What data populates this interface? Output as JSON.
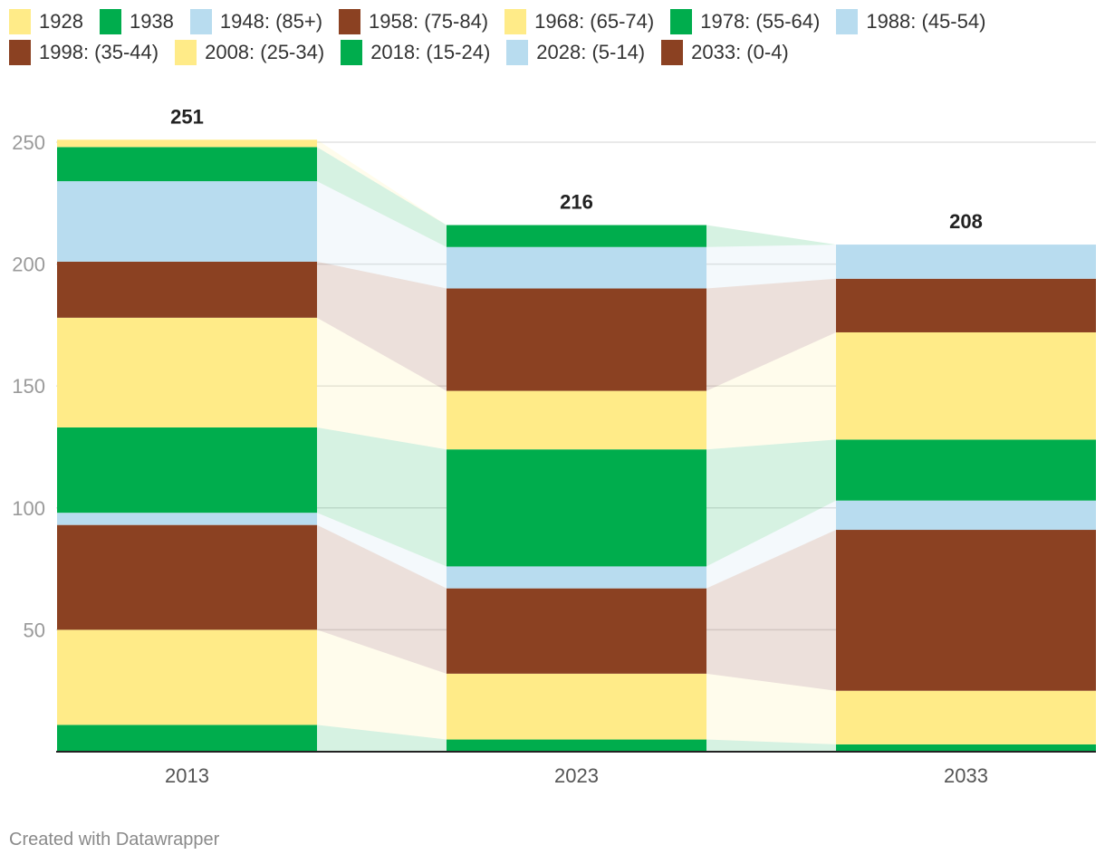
{
  "chart_data": {
    "type": "bar",
    "subtype": "stacked-bar-with-flows",
    "categories": [
      "2013",
      "2023",
      "2033"
    ],
    "totals": [
      251,
      216,
      208
    ],
    "ylim": [
      0,
      250
    ],
    "yticks": [
      50,
      100,
      150,
      200,
      250
    ],
    "grid": true,
    "legend_position": "top",
    "title": "",
    "xlabel": "",
    "ylabel": "",
    "series": [
      {
        "name": "2028: (5-14)",
        "color": "#b8dcef",
        "values": [
          0,
          0,
          0
        ]
      },
      {
        "name": "2018: (15-24)",
        "color": "#00ad4d",
        "values": [
          11,
          5,
          3
        ]
      },
      {
        "name": "2008: (25-34)",
        "color": "#ffeb88",
        "values": [
          39,
          27,
          22
        ]
      },
      {
        "name": "1998: (35-44)",
        "color": "#8b4122",
        "values": [
          43,
          35,
          66
        ]
      },
      {
        "name": "1988: (45-54)",
        "color": "#b8dcef",
        "values": [
          5,
          9,
          12
        ]
      },
      {
        "name": "1978: (55-64)",
        "color": "#00ad4d",
        "values": [
          35,
          48,
          25
        ]
      },
      {
        "name": "1968: (65-74)",
        "color": "#ffeb88",
        "values": [
          45,
          24,
          44
        ]
      },
      {
        "name": "1958: (75-84)",
        "color": "#8b4122",
        "values": [
          23,
          42,
          22
        ]
      },
      {
        "name": "1948: (85+)",
        "color": "#b8dcef",
        "values": [
          33,
          17,
          14
        ]
      },
      {
        "name": "1938",
        "color": "#00ad4d",
        "values": [
          14,
          9,
          0
        ]
      },
      {
        "name": "1928",
        "color": "#ffeb88",
        "values": [
          3,
          0,
          0
        ]
      }
    ]
  },
  "legend": [
    {
      "label": "1928",
      "color": "#ffeb88"
    },
    {
      "label": "1938",
      "color": "#00ad4d"
    },
    {
      "label": "1948: (85+)",
      "color": "#b8dcef"
    },
    {
      "label": "1958: (75-84)",
      "color": "#8b4122"
    },
    {
      "label": "1968: (65-74)",
      "color": "#ffeb88"
    },
    {
      "label": "1978: (55-64)",
      "color": "#00ad4d"
    },
    {
      "label": "1988: (45-54)",
      "color": "#b8dcef"
    },
    {
      "label": "1998: (35-44)",
      "color": "#8b4122"
    },
    {
      "label": "2008: (25-34)",
      "color": "#ffeb88"
    },
    {
      "label": "2018: (15-24)",
      "color": "#00ad4d"
    },
    {
      "label": "2028: (5-14)",
      "color": "#b8dcef"
    },
    {
      "label": "2033: (0-4)",
      "color": "#8b4122"
    }
  ],
  "footer": "Created with Datawrapper"
}
